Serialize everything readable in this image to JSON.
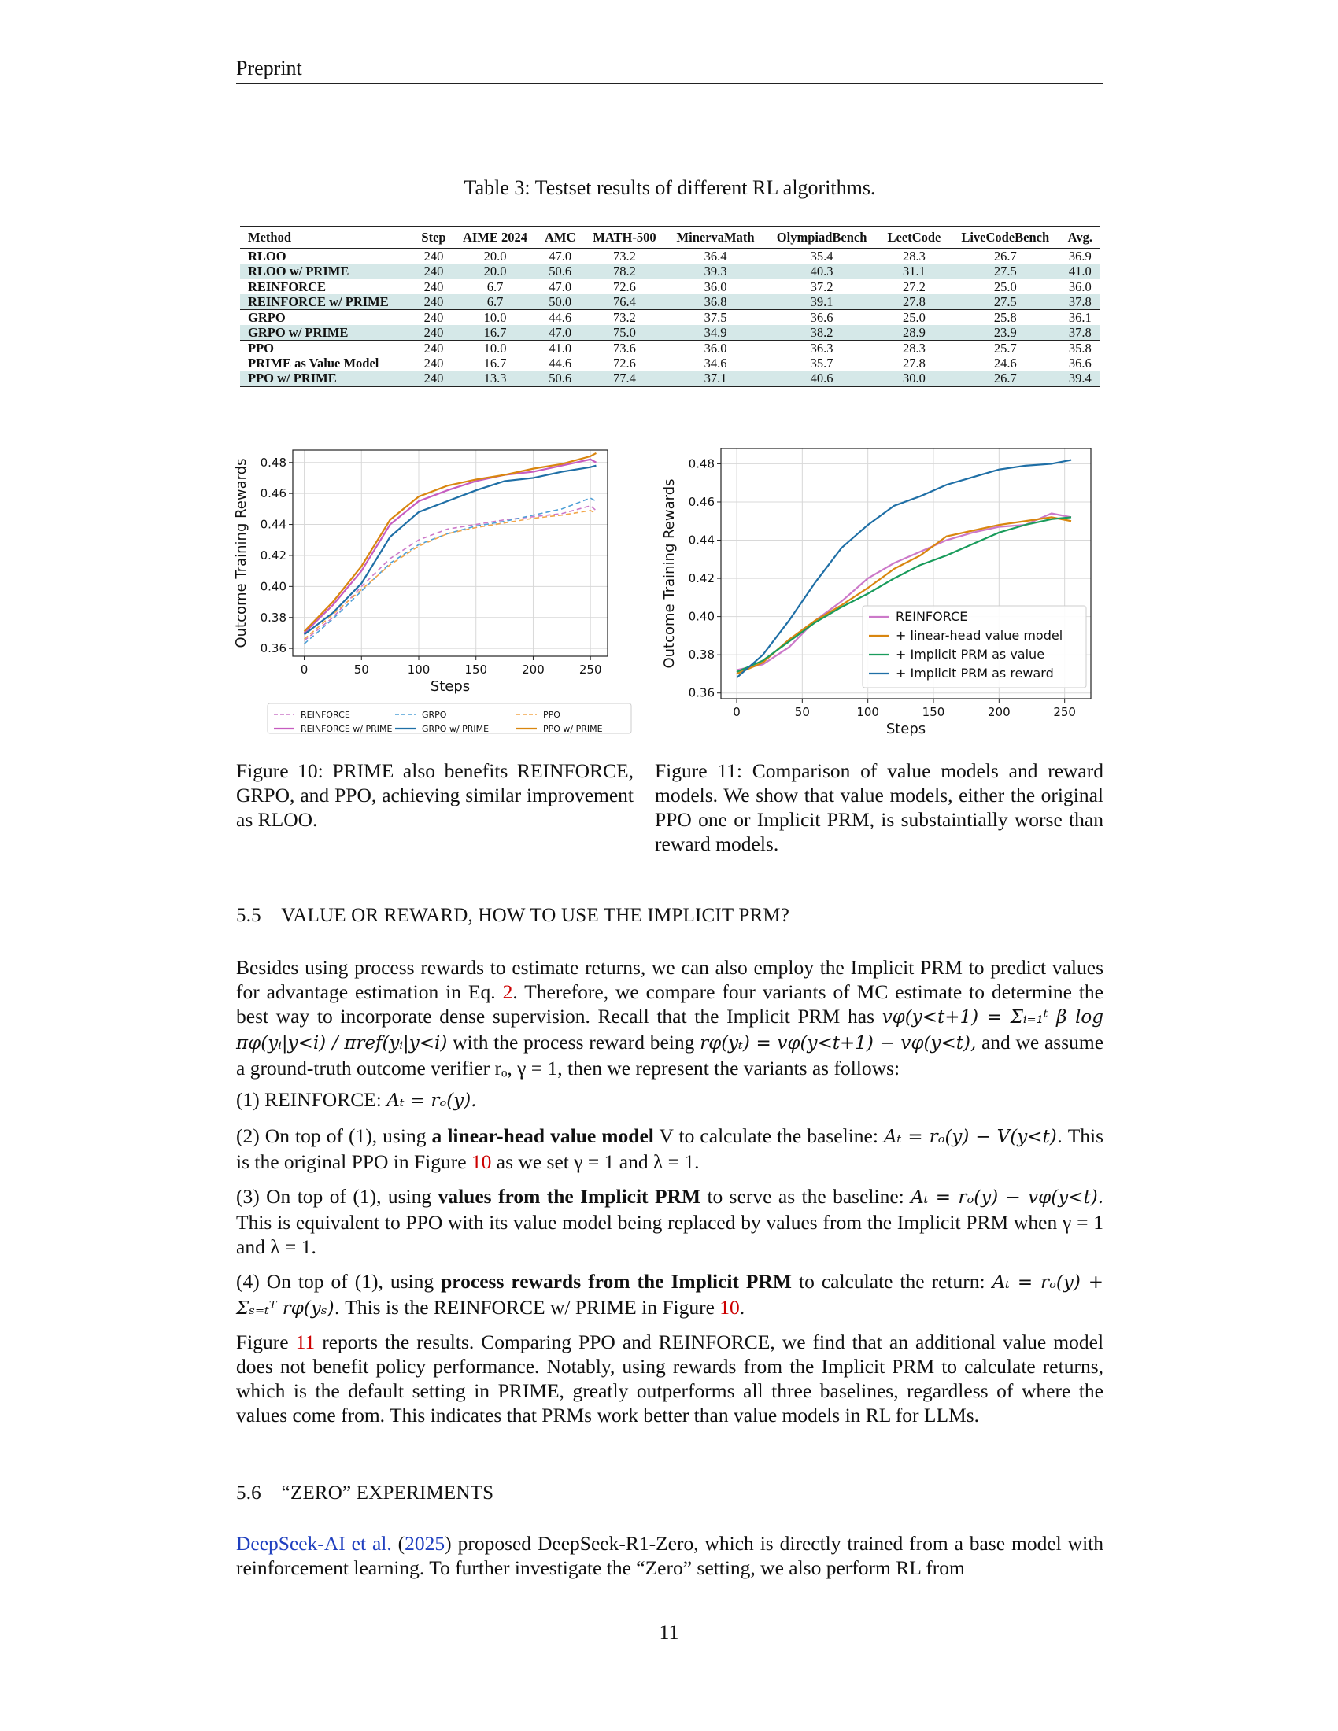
{
  "header": "Preprint",
  "table": {
    "caption": "Table 3: Testset results of different RL algorithms.",
    "columns": [
      "Method",
      "Step",
      "AIME 2024",
      "AMC",
      "MATH-500",
      "MinervaMath",
      "OlympiadBench",
      "LeetCode",
      "LiveCodeBench",
      "Avg."
    ],
    "rows": [
      {
        "cells": [
          "RLOO",
          "240",
          "20.0",
          "47.0",
          "73.2",
          "36.4",
          "35.4",
          "28.3",
          "26.7",
          "36.9"
        ],
        "highlight": false,
        "group_start": true
      },
      {
        "cells": [
          "RLOO w/ PRIME",
          "240",
          "20.0",
          "50.6",
          "78.2",
          "39.3",
          "40.3",
          "31.1",
          "27.5",
          "41.0"
        ],
        "highlight": true,
        "group_start": false
      },
      {
        "cells": [
          "REINFORCE",
          "240",
          "6.7",
          "47.0",
          "72.6",
          "36.0",
          "37.2",
          "27.2",
          "25.0",
          "36.0"
        ],
        "highlight": false,
        "group_start": true
      },
      {
        "cells": [
          "REINFORCE w/ PRIME",
          "240",
          "6.7",
          "50.0",
          "76.4",
          "36.8",
          "39.1",
          "27.8",
          "27.5",
          "37.8"
        ],
        "highlight": true,
        "group_start": false
      },
      {
        "cells": [
          "GRPO",
          "240",
          "10.0",
          "44.6",
          "73.2",
          "37.5",
          "36.6",
          "25.0",
          "25.8",
          "36.1"
        ],
        "highlight": false,
        "group_start": true
      },
      {
        "cells": [
          "GRPO w/ PRIME",
          "240",
          "16.7",
          "47.0",
          "75.0",
          "34.9",
          "38.2",
          "28.9",
          "23.9",
          "37.8"
        ],
        "highlight": true,
        "group_start": false
      },
      {
        "cells": [
          "PPO",
          "240",
          "10.0",
          "41.0",
          "73.6",
          "36.0",
          "36.3",
          "28.3",
          "25.7",
          "35.8"
        ],
        "highlight": false,
        "group_start": true
      },
      {
        "cells": [
          "PRIME as Value Model",
          "240",
          "16.7",
          "44.6",
          "72.6",
          "34.6",
          "35.7",
          "27.8",
          "24.6",
          "36.6"
        ],
        "highlight": false,
        "group_start": false
      },
      {
        "cells": [
          "PPO w/ PRIME",
          "240",
          "13.3",
          "50.6",
          "77.4",
          "37.1",
          "40.6",
          "30.0",
          "26.7",
          "39.4"
        ],
        "highlight": true,
        "group_start": false
      }
    ]
  },
  "chart_data": [
    {
      "type": "line",
      "xlabel": "Steps",
      "ylabel": "Outcome Training Rewards",
      "xlim": [
        -10,
        265
      ],
      "ylim": [
        0.355,
        0.488
      ],
      "xticks": [
        "0",
        "50",
        "100",
        "150",
        "200",
        "250"
      ],
      "yticks": [
        "0.36",
        "0.38",
        "0.40",
        "0.42",
        "0.44",
        "0.46",
        "0.48"
      ],
      "grid": true,
      "legend_position": "bottom-outside",
      "series": [
        {
          "name": "REINFORCE",
          "color": "#cc79c9",
          "dashed": true,
          "x": [
            0,
            25,
            50,
            75,
            100,
            125,
            150,
            175,
            200,
            225,
            250,
            255
          ],
          "y": [
            0.365,
            0.38,
            0.4,
            0.418,
            0.43,
            0.437,
            0.44,
            0.443,
            0.445,
            0.447,
            0.452,
            0.449
          ]
        },
        {
          "name": "GRPO",
          "color": "#4d9fd6",
          "dashed": true,
          "x": [
            0,
            25,
            50,
            75,
            100,
            125,
            150,
            175,
            200,
            225,
            250,
            255
          ],
          "y": [
            0.363,
            0.379,
            0.397,
            0.415,
            0.427,
            0.434,
            0.439,
            0.442,
            0.446,
            0.45,
            0.457,
            0.455
          ]
        },
        {
          "name": "PPO",
          "color": "#f2a64a",
          "dashed": true,
          "x": [
            0,
            25,
            50,
            75,
            100,
            125,
            150,
            175,
            200,
            225,
            250,
            255
          ],
          "y": [
            0.366,
            0.382,
            0.398,
            0.414,
            0.426,
            0.434,
            0.438,
            0.441,
            0.444,
            0.446,
            0.449,
            0.447
          ]
        },
        {
          "name": "REINFORCE w/ PRIME",
          "color": "#c65cc0",
          "dashed": false,
          "x": [
            0,
            25,
            50,
            75,
            100,
            125,
            150,
            175,
            200,
            225,
            250,
            255
          ],
          "y": [
            0.37,
            0.388,
            0.41,
            0.44,
            0.455,
            0.462,
            0.468,
            0.472,
            0.474,
            0.478,
            0.482,
            0.48
          ]
        },
        {
          "name": "GRPO w/ PRIME",
          "color": "#1f6fa6",
          "dashed": false,
          "x": [
            0,
            25,
            50,
            75,
            100,
            125,
            150,
            175,
            200,
            225,
            250,
            255
          ],
          "y": [
            0.369,
            0.383,
            0.402,
            0.432,
            0.448,
            0.455,
            0.462,
            0.468,
            0.47,
            0.474,
            0.477,
            0.478
          ]
        },
        {
          "name": "PPO w/ PRIME",
          "color": "#d9860f",
          "dashed": false,
          "x": [
            0,
            25,
            50,
            75,
            100,
            125,
            150,
            175,
            200,
            225,
            250,
            255
          ],
          "y": [
            0.371,
            0.39,
            0.413,
            0.443,
            0.458,
            0.465,
            0.469,
            0.472,
            0.476,
            0.479,
            0.484,
            0.486
          ]
        }
      ]
    },
    {
      "type": "line",
      "xlabel": "Steps",
      "ylabel": "Outcome Training Rewards",
      "xlim": [
        -12,
        270
      ],
      "ylim": [
        0.357,
        0.488
      ],
      "xticks": [
        "0",
        "50",
        "100",
        "150",
        "200",
        "250"
      ],
      "yticks": [
        "0.36",
        "0.38",
        "0.40",
        "0.42",
        "0.44",
        "0.46",
        "0.48"
      ],
      "grid": true,
      "legend_position": "lower-right",
      "series": [
        {
          "name": "REINFORCE",
          "color": "#cc79c9",
          "dashed": false,
          "x": [
            0,
            20,
            40,
            60,
            80,
            100,
            120,
            140,
            160,
            180,
            200,
            220,
            240,
            255
          ],
          "y": [
            0.372,
            0.375,
            0.384,
            0.398,
            0.408,
            0.42,
            0.428,
            0.434,
            0.44,
            0.444,
            0.447,
            0.448,
            0.454,
            0.452
          ]
        },
        {
          "name": "+ linear-head value model",
          "color": "#d9860f",
          "dashed": false,
          "x": [
            0,
            20,
            40,
            60,
            80,
            100,
            120,
            140,
            160,
            180,
            200,
            220,
            240,
            255
          ],
          "y": [
            0.37,
            0.376,
            0.388,
            0.398,
            0.406,
            0.415,
            0.425,
            0.432,
            0.442,
            0.445,
            0.448,
            0.45,
            0.452,
            0.45
          ]
        },
        {
          "name": "+ Implicit PRM as value",
          "color": "#1a9c5c",
          "dashed": false,
          "x": [
            0,
            20,
            40,
            60,
            80,
            100,
            120,
            140,
            160,
            180,
            200,
            220,
            240,
            255
          ],
          "y": [
            0.371,
            0.377,
            0.387,
            0.397,
            0.405,
            0.412,
            0.42,
            0.427,
            0.432,
            0.438,
            0.444,
            0.448,
            0.451,
            0.452
          ]
        },
        {
          "name": "+ Implicit PRM as reward",
          "color": "#1f6fa6",
          "dashed": false,
          "x": [
            0,
            20,
            40,
            60,
            80,
            100,
            120,
            140,
            160,
            180,
            200,
            220,
            240,
            255
          ],
          "y": [
            0.368,
            0.38,
            0.398,
            0.418,
            0.436,
            0.448,
            0.458,
            0.463,
            0.469,
            0.473,
            0.477,
            0.479,
            0.48,
            0.482
          ]
        }
      ]
    }
  ],
  "figures": {
    "fig10_caption": "Figure 10: PRIME also benefits REINFORCE, GRPO, and PPO, achieving similar improvement as RLOO.",
    "fig11_caption": "Figure 11: Comparison of value models and reward models. We show that value models, either the original PPO one or Implicit PRM, is substaintially worse than reward models."
  },
  "section_55": {
    "number": "5.5",
    "title": "VALUE OR REWARD, HOW TO USE THE IMPLICIT PRM?",
    "p1_a": "Besides using process rewards to estimate returns, we can also employ the Implicit PRM to predict values for advantage estimation in Eq.",
    "p1_ref": "2",
    "p1_b": ". Therefore, we compare four variants of MC estimate to determine the best way to incorporate dense supervision. Recall that the Implicit PRM has",
    "p1_math1": "vφ(y<t+1) = Σᵢ₌₁ᵗ β log πφ(yᵢ|y<i) / πref(yᵢ|y<i)",
    "p1_c": "with the process reward being",
    "p1_math2": "rφ(yₜ) = vφ(y<t+1) − vφ(y<t),",
    "p1_d": "and we assume a ground-truth outcome verifier rₒ, γ = 1, then we represent the variants as follows:",
    "item1_a": "(1) REINFORCE:",
    "item1_math": "Aₜ = rₒ(y).",
    "item2_a": "(2) On top of (1), using",
    "item2_bold": "a linear-head value model",
    "item2_b": "V to calculate the baseline:",
    "item2_math": "Aₜ = rₒ(y) − V(y<t).",
    "item2_c": "This is the original PPO in Figure",
    "item2_ref": "10",
    "item2_d": "as we set γ = 1 and λ = 1.",
    "item3_a": "(3) On top of (1), using",
    "item3_bold": "values from the Implicit PRM",
    "item3_b": "to serve as the baseline:",
    "item3_math": "Aₜ = rₒ(y) − vφ(y<t).",
    "item3_c": "This is equivalent to PPO with its value model being replaced by values from the Implicit PRM when γ = 1 and λ = 1.",
    "item4_a": "(4) On top of (1), using",
    "item4_bold": "process rewards from the Implicit PRM",
    "item4_b": "to calculate the return:",
    "item4_math": "Aₜ = rₒ(y) + Σₛ₌ₜᵀ rφ(yₛ).",
    "item4_c": "This is the REINFORCE w/ PRIME in Figure",
    "item4_ref": "10",
    "item4_d": ".",
    "p2_a": "Figure",
    "p2_ref": "11",
    "p2_b": "reports the results. Comparing PPO and REINFORCE, we find that an additional value model does not benefit policy performance. Notably, using rewards from the Implicit PRM to calculate returns, which is the default setting in PRIME, greatly outperforms all three baselines, regardless of where the values come from. This indicates that PRMs work better than value models in RL for LLMs."
  },
  "section_56": {
    "number": "5.6",
    "title": "“ZERO” EXPERIMENTS",
    "cite_a": "DeepSeek-AI et al.",
    "cite_year": "2025",
    "p1": "proposed DeepSeek-R1-Zero, which is directly trained from a base model with reinforcement learning. To further investigate the “Zero” setting, we also perform RL from"
  },
  "page_number": "11"
}
